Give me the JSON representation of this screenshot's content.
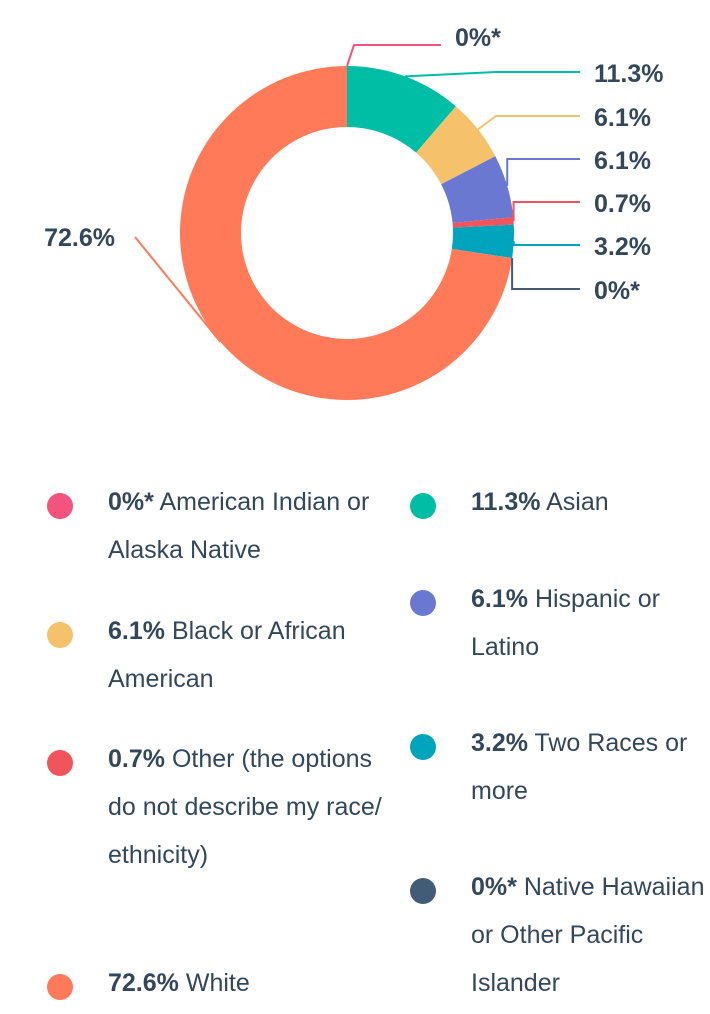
{
  "chart_data": {
    "type": "pie",
    "donut": true,
    "title": "",
    "slices": [
      {
        "label": "Asian",
        "value": 11.3,
        "display": "11.3%",
        "color": "#00bda5"
      },
      {
        "label": "Black or African American",
        "value": 6.1,
        "display": "6.1%",
        "color": "#f5c26b"
      },
      {
        "label": "Hispanic or Latino",
        "value": 6.1,
        "display": "6.1%",
        "color": "#6a78d1"
      },
      {
        "label": "Other (the options do not describe my race/ ethnicity)",
        "value": 0.7,
        "display": "0.7%",
        "color": "#f2545b"
      },
      {
        "label": "Two Races or more",
        "value": 3.2,
        "display": "3.2%",
        "color": "#00a4bd"
      },
      {
        "label": "Native Hawaiian or Other Pacific Islander",
        "value": 0,
        "display": "0%*",
        "color": "#425b76"
      },
      {
        "label": "White",
        "value": 72.6,
        "display": "72.6%",
        "color": "#ff7a59"
      },
      {
        "label": "American Indian or Alaska Native",
        "value": 0,
        "display": "0%*",
        "color": "#f2547d"
      }
    ],
    "callouts_order": [
      7,
      0,
      1,
      2,
      3,
      4,
      5,
      6
    ]
  },
  "legend": [
    {
      "value": "0%*",
      "label": "American Indian or Alaska Native",
      "color": "#f2547d"
    },
    {
      "value": "11.3%",
      "label": "Asian",
      "color": "#00bda5"
    },
    {
      "value": "6.1%",
      "label": "Black or African American",
      "color": "#f5c26b"
    },
    {
      "value": "6.1%",
      "label": "Hispanic or Latino",
      "color": "#6a78d1"
    },
    {
      "value": "0.7%",
      "label": "Other (the options do not describe my race/ ethnicity)",
      "color": "#f2545b"
    },
    {
      "value": "3.2%",
      "label": "Two Races or more",
      "color": "#00a4bd"
    },
    {
      "value": "72.6%",
      "label": "White",
      "color": "#ff7a59"
    },
    {
      "value": "0%*",
      "label": "Native Hawaiian or Other Pacific Islander",
      "color": "#425b76"
    }
  ]
}
